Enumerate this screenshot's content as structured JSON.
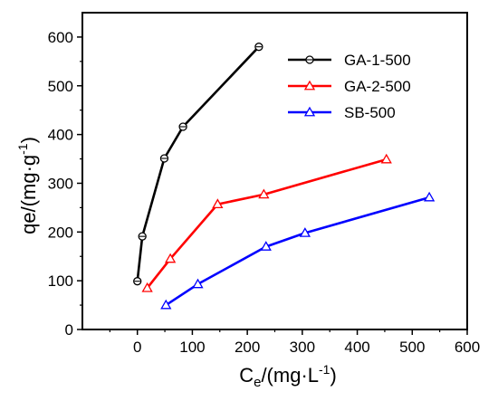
{
  "chart_data": {
    "type": "line",
    "xlabel": {
      "main": "C",
      "sub": "e",
      "rest": "/(mg·L",
      "sup": "-1",
      "close": ")"
    },
    "ylabel": {
      "main": "qe/(mg·g",
      "sup": "-1",
      "close": ")"
    },
    "xlim": [
      -100,
      600
    ],
    "ylim": [
      0,
      650
    ],
    "xticks": [
      0,
      100,
      200,
      300,
      400,
      500,
      600
    ],
    "yticks": [
      0,
      100,
      200,
      300,
      400,
      500,
      600
    ],
    "grid": false,
    "legend_position": "top-right",
    "series": [
      {
        "name": "GA-1-500",
        "color": "#000000",
        "marker": "circle",
        "points": [
          [
            0,
            99
          ],
          [
            9,
            191
          ],
          [
            49,
            351
          ],
          [
            83,
            416
          ],
          [
            221,
            580
          ]
        ]
      },
      {
        "name": "GA-2-500",
        "color": "#ff0000",
        "marker": "triangle",
        "points": [
          [
            18,
            85
          ],
          [
            60,
            145
          ],
          [
            146,
            257
          ],
          [
            230,
            277
          ],
          [
            453,
            349
          ]
        ]
      },
      {
        "name": "SB-500",
        "color": "#0000ff",
        "marker": "triangle",
        "points": [
          [
            52,
            50
          ],
          [
            110,
            93
          ],
          [
            234,
            170
          ],
          [
            305,
            198
          ],
          [
            531,
            271
          ]
        ]
      }
    ]
  }
}
